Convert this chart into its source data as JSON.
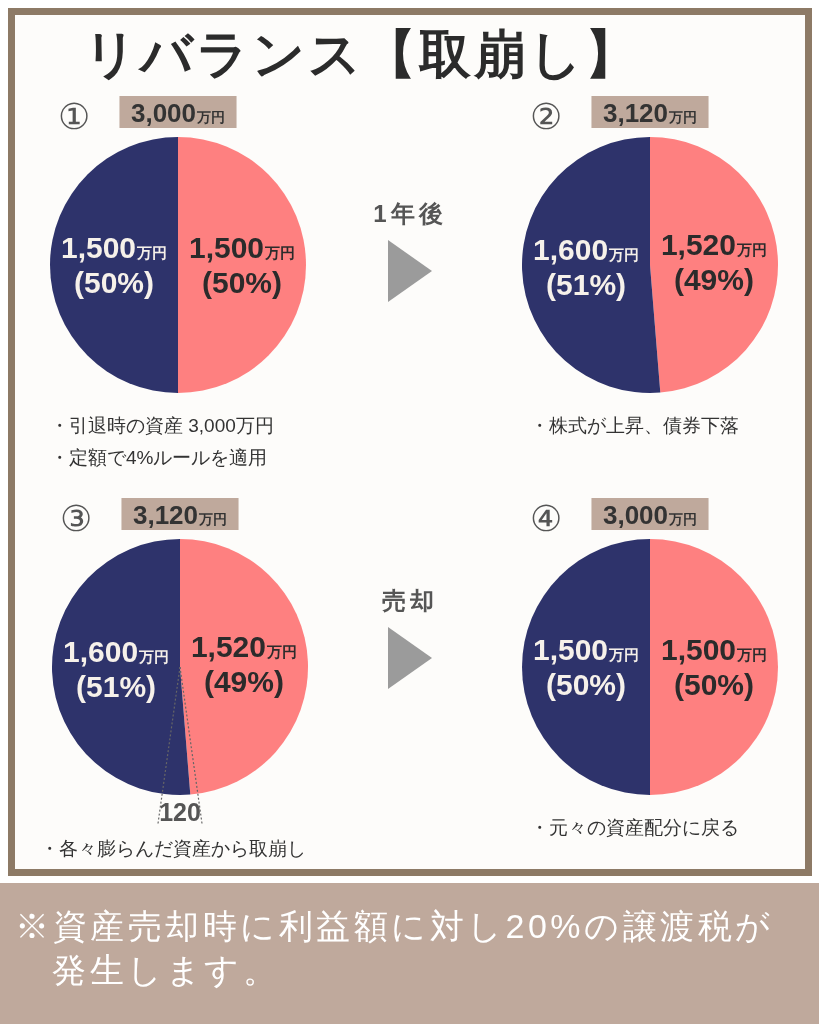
{
  "chart_data": [
    {
      "type": "other",
      "title": "リバランス【取崩し】"
    },
    {
      "type": "pie",
      "title": "①",
      "subtitle": "3,000万円",
      "categories": [
        null,
        null
      ],
      "values": [
        1500,
        1500
      ],
      "colors": [
        "#fe8080",
        "#2e336b"
      ],
      "value_labels": [
        "1,500万円\n(50%)",
        "1,500万円\n(50%)"
      ],
      "annotations": [
        "・引退時の資産 3,000万円",
        "・定額で4%ルールを適用"
      ]
    },
    {
      "type": "other",
      "annotations": [
        "1年後"
      ]
    },
    {
      "type": "pie",
      "title": "②",
      "subtitle": "3,120万円",
      "categories": [
        null,
        null
      ],
      "values": [
        1520,
        1600
      ],
      "colors": [
        "#fe8080",
        "#2e336b"
      ],
      "value_labels": [
        "1,520万円\n(49%)",
        "1,600万円\n(51%)"
      ],
      "annotations": [
        "・株式が上昇、債券下落"
      ]
    },
    {
      "type": "pie",
      "title": "③",
      "subtitle": "3,120万円",
      "categories": [
        null,
        null
      ],
      "values": [
        1520,
        1600
      ],
      "colors": [
        "#fe8080",
        "#2e336b"
      ],
      "value_labels": [
        "1,520万円\n(49%)",
        "1,600万円\n(51%)"
      ],
      "annotations": [
        {
          "text": "120"
        },
        "・各々膨らんだ資産から取崩し"
      ]
    },
    {
      "type": "other",
      "annotations": [
        "売却"
      ]
    },
    {
      "type": "pie",
      "title": "④",
      "subtitle": "3,000万円",
      "categories": [
        null,
        null
      ],
      "values": [
        1500,
        1500
      ],
      "colors": [
        "#fe8080",
        "#2e336b"
      ],
      "value_labels": [
        "1,500万円\n(50%)",
        "1,500万円\n(50%)"
      ],
      "annotations": [
        "・元々の資産配分に戻る"
      ]
    },
    {
      "type": "other",
      "annotations": [
        "※資産売却時に利益額に対し20%の譲渡税が発生します。"
      ]
    }
  ]
}
